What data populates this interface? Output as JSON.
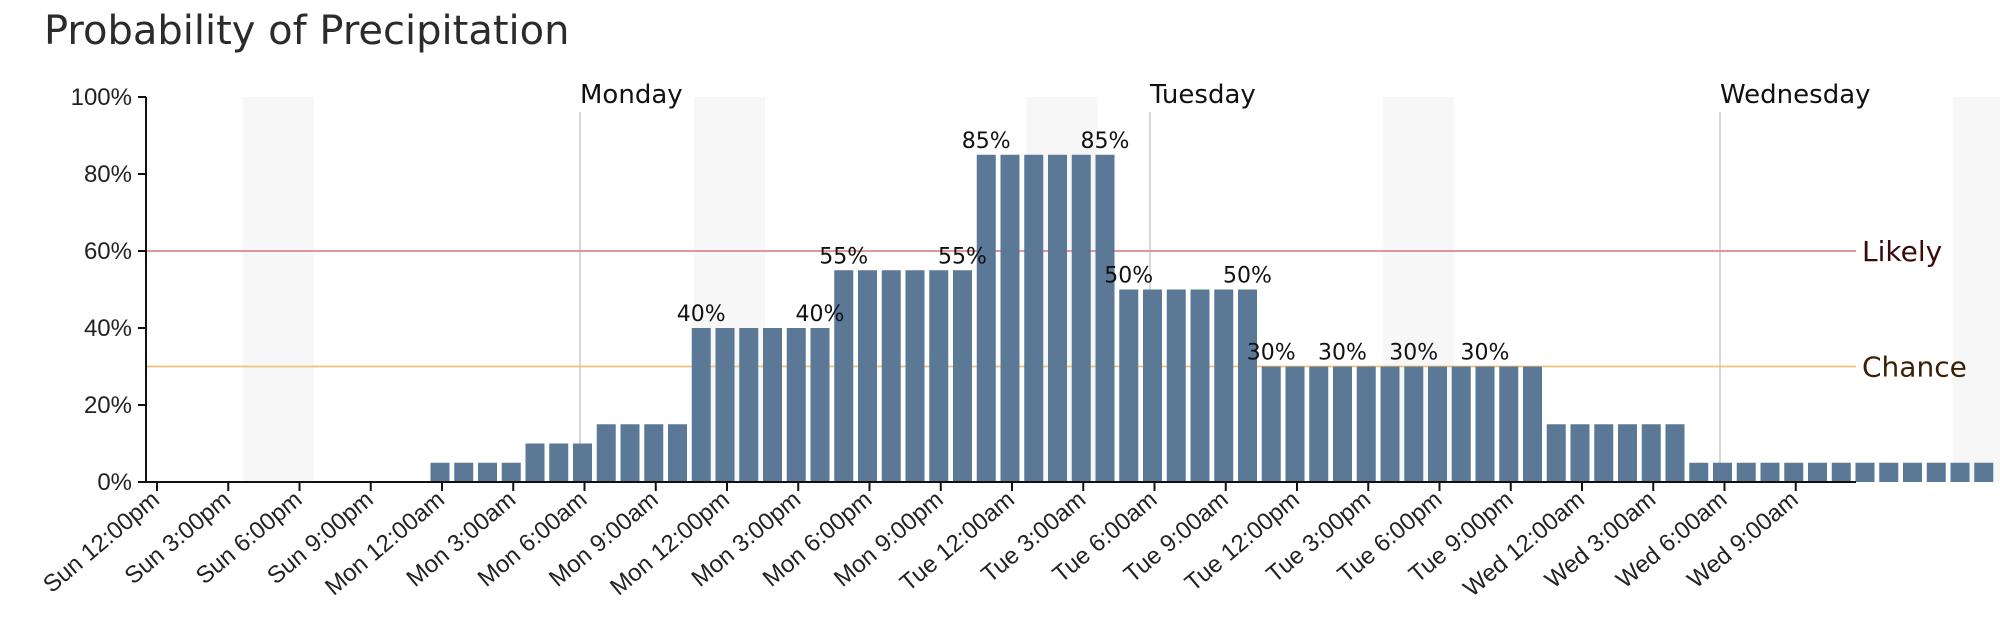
{
  "chart_data": {
    "type": "bar",
    "title": "Probability of Precipitation",
    "xlabel": "",
    "ylabel": "",
    "ylim": [
      0,
      100
    ],
    "y_ticks": [
      "0%",
      "20%",
      "40%",
      "60%",
      "80%",
      "100%"
    ],
    "x_tick_labels": [
      "Sun 12:00pm",
      "Sun 3:00pm",
      "Sun 6:00pm",
      "Sun 9:00pm",
      "Mon 12:00am",
      "Mon 3:00am",
      "Mon 6:00am",
      "Mon 9:00am",
      "Mon 12:00pm",
      "Mon 3:00pm",
      "Mon 6:00pm",
      "Mon 9:00pm",
      "Tue 12:00am",
      "Tue 3:00am",
      "Tue 6:00am",
      "Tue 9:00am",
      "Tue 12:00pm",
      "Tue 3:00pm",
      "Tue 6:00pm",
      "Tue 9:00pm",
      "Wed 12:00am",
      "Wed 3:00am",
      "Wed 6:00am",
      "Wed 9:00am"
    ],
    "day_labels": [
      "Monday",
      "Tuesday",
      "Wednesday"
    ],
    "bar_values": [
      0,
      0,
      0,
      0,
      0,
      0,
      5,
      5,
      5,
      5,
      10,
      10,
      10,
      15,
      15,
      15,
      15,
      40,
      40,
      40,
      40,
      40,
      40,
      55,
      55,
      55,
      55,
      55,
      55,
      85,
      85,
      85,
      85,
      85,
      85,
      50,
      50,
      50,
      50,
      50,
      50,
      30,
      30,
      30,
      30,
      30,
      30,
      30,
      30,
      30,
      30,
      30,
      30,
      15,
      15,
      15,
      15,
      15,
      15,
      5,
      5,
      5,
      5,
      5,
      5,
      5,
      5,
      5,
      5,
      5,
      5,
      5
    ],
    "bar_interval_hours": 1,
    "data_labels": [
      {
        "bar_index": 17,
        "text": "40%"
      },
      {
        "bar_index": 22,
        "text": "40%"
      },
      {
        "bar_index": 23,
        "text": "55%"
      },
      {
        "bar_index": 28,
        "text": "55%"
      },
      {
        "bar_index": 29,
        "text": "85%"
      },
      {
        "bar_index": 34,
        "text": "85%"
      },
      {
        "bar_index": 35,
        "text": "50%"
      },
      {
        "bar_index": 40,
        "text": "50%"
      },
      {
        "bar_index": 41,
        "text": "30%"
      },
      {
        "bar_index": 44,
        "text": "30%"
      },
      {
        "bar_index": 47,
        "text": "30%"
      },
      {
        "bar_index": 50,
        "text": "30%"
      }
    ],
    "thresholds": [
      {
        "label": "Likely",
        "value": 60,
        "color": "#d98a8f",
        "label_color": "#3a0a0a"
      },
      {
        "label": "Chance",
        "value": 30,
        "color": "#f0c27a",
        "label_color": "#3a1f05"
      }
    ],
    "bar_color": "#5b7897",
    "night_shading_color": "#f7f7f7",
    "grid": false,
    "legend": "none"
  }
}
